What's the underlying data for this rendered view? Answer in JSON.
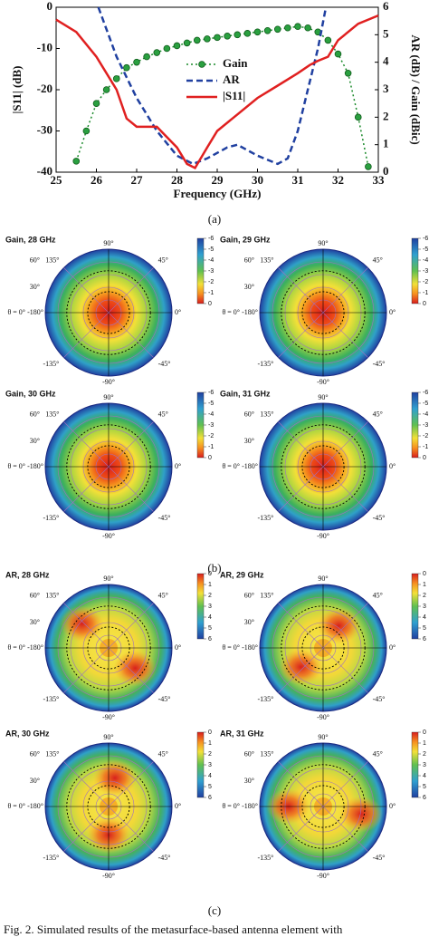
{
  "panel_labels": [
    "(a)",
    "(b)",
    "(c)"
  ],
  "caption": "Fig. 2.  Simulated results of the metasurface-based antenna element with",
  "polar_axis_labels": {
    "top": "90°",
    "bottom": "-90°",
    "upper_right": "45°",
    "lower_right": "-45°",
    "upper_left": "135°",
    "lower_left": "-135°",
    "left_60": "60°",
    "left_30": "30°",
    "theta": "θ = 0°",
    "left": "-180°",
    "right": "0°"
  },
  "chart_data": [
    {
      "type": "line",
      "xlabel": "Frequency (GHz)",
      "ylabel": "|S11| (dB)",
      "y2label": "AR (dB) / Gain (dBic)",
      "xlim": [
        25,
        33
      ],
      "xticks": [
        25,
        26,
        27,
        28,
        29,
        30,
        31,
        32,
        33
      ],
      "ylim": [
        -40,
        0
      ],
      "yticks": [
        -40,
        -30,
        -20,
        -10,
        0
      ],
      "y2lim": [
        0,
        6
      ],
      "y2ticks": [
        0,
        1,
        2,
        3,
        4,
        5,
        6
      ],
      "series": [
        {
          "name": "Gain",
          "color": "#1a8a2a",
          "axis": "y2",
          "marker": true,
          "x": [
            25.5,
            25.75,
            26.0,
            26.25,
            26.5,
            26.75,
            27.0,
            27.25,
            27.5,
            27.75,
            28.0,
            28.25,
            28.5,
            28.75,
            29.0,
            29.25,
            29.5,
            29.75,
            30.0,
            30.25,
            30.5,
            30.75,
            31.0,
            31.25,
            31.5,
            31.75,
            32.0,
            32.25,
            32.5,
            32.75
          ],
          "values": [
            0.4,
            1.5,
            2.5,
            3.0,
            3.4,
            3.8,
            4.0,
            4.2,
            4.35,
            4.5,
            4.6,
            4.7,
            4.8,
            4.85,
            4.9,
            4.95,
            5.0,
            5.05,
            5.1,
            5.15,
            5.2,
            5.25,
            5.3,
            5.25,
            5.1,
            4.8,
            4.3,
            3.6,
            2.0,
            0.2
          ]
        },
        {
          "name": "AR",
          "color": "#2040a0",
          "axis": "y2",
          "dash": true,
          "x": [
            26.05,
            26.5,
            27.0,
            27.5,
            28.0,
            28.4,
            28.75,
            29.25,
            29.5,
            30.0,
            30.5,
            30.75,
            31.0,
            31.25,
            31.5,
            31.7
          ],
          "values": [
            6,
            4.2,
            2.7,
            1.5,
            0.6,
            0.3,
            0.5,
            0.9,
            1.0,
            0.6,
            0.3,
            0.5,
            1.5,
            3.0,
            4.5,
            6
          ]
        },
        {
          "name": "|S11|",
          "color": "#e02020",
          "axis": "y",
          "x": [
            25,
            25.5,
            26,
            26.5,
            26.75,
            27,
            27.5,
            28,
            28.25,
            28.45,
            28.75,
            29,
            29.5,
            30,
            30.5,
            31,
            31.3,
            31.5,
            31.75,
            32,
            32.5,
            33
          ],
          "values": [
            -3,
            -6,
            -12,
            -20,
            -27,
            -29,
            -29,
            -34,
            -38,
            -39,
            -34,
            -30,
            -26,
            -22,
            -19,
            -16,
            -14,
            -13,
            -12,
            -8,
            -4,
            -2
          ]
        }
      ]
    },
    {
      "type": "polar-contour",
      "title": "Gain, 28 GHz",
      "map": "gain",
      "colorbar_ticks": [
        -6,
        -5,
        -4,
        -3,
        -2,
        -1,
        0
      ]
    },
    {
      "type": "polar-contour",
      "title": "Gain, 29 GHz",
      "map": "gain",
      "colorbar_ticks": [
        -6,
        -5,
        -4,
        -3,
        -2,
        -1,
        0
      ]
    },
    {
      "type": "polar-contour",
      "title": "Gain, 30 GHz",
      "map": "gain",
      "colorbar_ticks": [
        -6,
        -5,
        -4,
        -3,
        -2,
        -1,
        0
      ]
    },
    {
      "type": "polar-contour",
      "title": "Gain, 31 GHz",
      "map": "gain",
      "colorbar_ticks": [
        -6,
        -5,
        -4,
        -3,
        -2,
        -1,
        0
      ]
    },
    {
      "type": "polar-contour",
      "title": "AR, 28 GHz",
      "map": "ar",
      "colorbar_ticks": [
        0,
        1,
        2,
        3,
        4,
        5,
        6
      ]
    },
    {
      "type": "polar-contour",
      "title": "AR, 29 GHz",
      "map": "ar",
      "colorbar_ticks": [
        0,
        1,
        2,
        3,
        4,
        5,
        6
      ]
    },
    {
      "type": "polar-contour",
      "title": "AR, 30 GHz",
      "map": "ar",
      "colorbar_ticks": [
        0,
        1,
        2,
        3,
        4,
        5,
        6
      ]
    },
    {
      "type": "polar-contour",
      "title": "AR, 31 GHz",
      "map": "ar",
      "colorbar_ticks": [
        0,
        1,
        2,
        3,
        4,
        5,
        6
      ]
    }
  ]
}
